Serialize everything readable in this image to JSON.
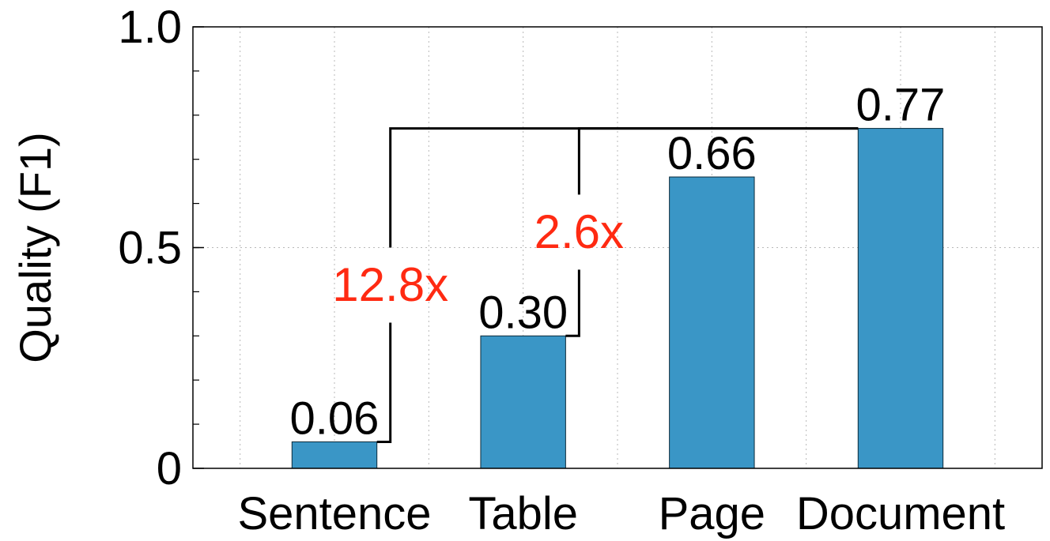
{
  "chart_data": {
    "type": "bar",
    "title": "",
    "xlabel": "",
    "ylabel": "Quality (F1)",
    "categories": [
      "Sentence",
      "Table",
      "Page",
      "Document"
    ],
    "values": [
      0.06,
      0.3,
      0.66,
      0.77
    ],
    "value_labels": [
      "0.06",
      "0.30",
      "0.66",
      "0.77"
    ],
    "ylim": [
      0,
      1.0
    ],
    "yticks": [
      0,
      0.5,
      1.0
    ],
    "ytick_labels": [
      "0",
      "0.5",
      "1.0"
    ],
    "grid": true,
    "bar_color": "#3a96c6",
    "annotations": [
      {
        "text": "12.8x",
        "from": "Sentence",
        "to": "Document",
        "color": "#ff2a12"
      },
      {
        "text": "2.6x",
        "from": "Table",
        "to": "Document",
        "color": "#ff2a12"
      }
    ]
  }
}
